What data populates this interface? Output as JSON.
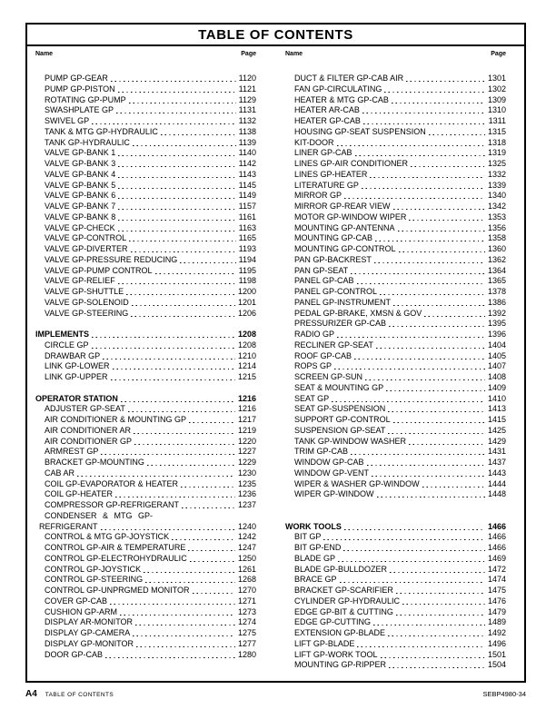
{
  "title": "TABLE OF CONTENTS",
  "column_headers": {
    "name": "Name",
    "page": "Page"
  },
  "footer": {
    "page_label": "A4",
    "section_label": "TABLE OF CONTENTS",
    "doc_number": "SEBP4980-34"
  },
  "colors": {
    "background": "#ffffff",
    "text": "#000000",
    "border": "#000000"
  },
  "columns": [
    {
      "rows": [
        {
          "t": "e",
          "label": "PUMP GP-GEAR",
          "page": "1120"
        },
        {
          "t": "e",
          "label": "PUMP GP-PISTON",
          "page": "1121"
        },
        {
          "t": "e",
          "label": "ROTATING GP-PUMP",
          "page": "1129"
        },
        {
          "t": "e",
          "label": "SWASHPLATE GP",
          "page": "1131"
        },
        {
          "t": "e",
          "label": "SWIVEL GP",
          "page": "1132"
        },
        {
          "t": "e",
          "label": "TANK & MTG GP-HYDRAULIC",
          "page": "1138"
        },
        {
          "t": "e",
          "label": "TANK GP-HYDRAULIC",
          "page": "1139"
        },
        {
          "t": "e",
          "label": "VALVE GP-BANK 1",
          "page": "1140"
        },
        {
          "t": "e",
          "label": "VALVE GP-BANK 3",
          "page": "1142"
        },
        {
          "t": "e",
          "label": "VALVE GP-BANK 4",
          "page": "1143"
        },
        {
          "t": "e",
          "label": "VALVE GP-BANK 5",
          "page": "1145"
        },
        {
          "t": "e",
          "label": "VALVE GP-BANK 6",
          "page": "1149"
        },
        {
          "t": "e",
          "label": "VALVE GP-BANK 7",
          "page": "1157"
        },
        {
          "t": "e",
          "label": "VALVE GP-BANK 8",
          "page": "1161"
        },
        {
          "t": "e",
          "label": "VALVE GP-CHECK",
          "page": "1163"
        },
        {
          "t": "e",
          "label": "VALVE GP-CONTROL",
          "page": "1165"
        },
        {
          "t": "e",
          "label": "VALVE GP-DIVERTER",
          "page": "1193"
        },
        {
          "t": "e",
          "label": "VALVE GP-PRESSURE REDUCING",
          "page": "1194"
        },
        {
          "t": "e",
          "label": "VALVE GP-PUMP CONTROL",
          "page": "1195"
        },
        {
          "t": "e",
          "label": "VALVE GP-RELIEF",
          "page": "1198"
        },
        {
          "t": "e",
          "label": "VALVE GP-SHUTTLE",
          "page": "1200"
        },
        {
          "t": "e",
          "label": "VALVE GP-SOLENOID",
          "page": "1201"
        },
        {
          "t": "e",
          "label": "VALVE GP-STEERING",
          "page": "1206"
        },
        {
          "t": "g"
        },
        {
          "t": "h",
          "label": "IMPLEMENTS",
          "page": "1208"
        },
        {
          "t": "e",
          "label": "CIRCLE GP",
          "page": "1208"
        },
        {
          "t": "e",
          "label": "DRAWBAR GP",
          "page": "1210"
        },
        {
          "t": "e",
          "label": "LINK GP-LOWER",
          "page": "1214"
        },
        {
          "t": "e",
          "label": "LINK GP-UPPER",
          "page": "1215"
        },
        {
          "t": "g"
        },
        {
          "t": "h",
          "label": "OPERATOR STATION",
          "page": "1216"
        },
        {
          "t": "e",
          "label": "ADJUSTER GP-SEAT",
          "page": "1216"
        },
        {
          "t": "e",
          "label": "AIR CONDITIONER & MOUNTING GP",
          "page": "1217"
        },
        {
          "t": "e",
          "label": "AIR CONDITIONER AR",
          "page": "1219"
        },
        {
          "t": "e",
          "label": "AIR CONDITIONER GP",
          "page": "1220"
        },
        {
          "t": "e",
          "label": "ARMREST GP",
          "page": "1227"
        },
        {
          "t": "e",
          "label": "BRACKET GP-MOUNTING",
          "page": "1229"
        },
        {
          "t": "e",
          "label": "CAB AR",
          "page": "1230"
        },
        {
          "t": "e",
          "label": "COIL GP-EVAPORATOR & HEATER",
          "page": "1235"
        },
        {
          "t": "e",
          "label": "COIL GP-HEATER",
          "page": "1236"
        },
        {
          "t": "e",
          "label": "COMPRESSOR GP-REFRIGERANT",
          "page": "1237"
        },
        {
          "t": "w",
          "label": "CONDENSER & MTG GP-"
        },
        {
          "t": "c",
          "label": "REFRIGERANT",
          "page": "1240"
        },
        {
          "t": "e",
          "label": "CONTROL & MTG GP-JOYSTICK",
          "page": "1242"
        },
        {
          "t": "e",
          "label": "CONTROL GP-AIR & TEMPERATURE",
          "page": "1247"
        },
        {
          "t": "e",
          "label": "CONTROL GP-ELECTROHYDRAULIC",
          "page": "1250"
        },
        {
          "t": "e",
          "label": "CONTROL GP-JOYSTICK",
          "page": "1261"
        },
        {
          "t": "e",
          "label": "CONTROL GP-STEERING",
          "page": "1268"
        },
        {
          "t": "e",
          "label": "CONTROL GP-UNPRGMED MONITOR",
          "page": "1270"
        },
        {
          "t": "e",
          "label": "COVER GP-CAB",
          "page": "1271"
        },
        {
          "t": "e",
          "label": "CUSHION GP-ARM",
          "page": "1273"
        },
        {
          "t": "e",
          "label": "DISPLAY AR-MONITOR",
          "page": "1274"
        },
        {
          "t": "e",
          "label": "DISPLAY GP-CAMERA",
          "page": "1275"
        },
        {
          "t": "e",
          "label": "DISPLAY GP-MONITOR",
          "page": "1277"
        },
        {
          "t": "e",
          "label": "DOOR GP-CAB",
          "page": "1280"
        }
      ]
    },
    {
      "rows": [
        {
          "t": "e",
          "label": "DUCT & FILTER GP-CAB AIR",
          "page": "1301"
        },
        {
          "t": "e",
          "label": "FAN GP-CIRCULATING",
          "page": "1302"
        },
        {
          "t": "e",
          "label": "HEATER & MTG GP-CAB",
          "page": "1309"
        },
        {
          "t": "e",
          "label": "HEATER AR-CAB",
          "page": "1310"
        },
        {
          "t": "e",
          "label": "HEATER GP-CAB",
          "page": "1311"
        },
        {
          "t": "e",
          "label": "HOUSING GP-SEAT SUSPENSION",
          "page": "1315"
        },
        {
          "t": "e",
          "label": "KIT-DOOR",
          "page": "1318"
        },
        {
          "t": "e",
          "label": "LINER GP-CAB",
          "page": "1319"
        },
        {
          "t": "e",
          "label": "LINES GP-AIR CONDITIONER",
          "page": "1325"
        },
        {
          "t": "e",
          "label": "LINES GP-HEATER",
          "page": "1332"
        },
        {
          "t": "e",
          "label": "LITERATURE GP",
          "page": "1339"
        },
        {
          "t": "e",
          "label": "MIRROR GP",
          "page": "1340"
        },
        {
          "t": "e",
          "label": "MIRROR GP-REAR VIEW",
          "page": "1342"
        },
        {
          "t": "e",
          "label": "MOTOR GP-WINDOW WIPER",
          "page": "1353"
        },
        {
          "t": "e",
          "label": "MOUNTING GP-ANTENNA",
          "page": "1356"
        },
        {
          "t": "e",
          "label": "MOUNTING GP-CAB",
          "page": "1358"
        },
        {
          "t": "e",
          "label": "MOUNTING GP-CONTROL",
          "page": "1360"
        },
        {
          "t": "e",
          "label": "PAN GP-BACKREST",
          "page": "1362"
        },
        {
          "t": "e",
          "label": "PAN GP-SEAT",
          "page": "1364"
        },
        {
          "t": "e",
          "label": "PANEL GP-CAB",
          "page": "1365"
        },
        {
          "t": "e",
          "label": "PANEL GP-CONTROL",
          "page": "1378"
        },
        {
          "t": "e",
          "label": "PANEL GP-INSTRUMENT",
          "page": "1386"
        },
        {
          "t": "e",
          "label": "PEDAL GP-BRAKE, XMSN & GOV",
          "page": "1392"
        },
        {
          "t": "e",
          "label": "PRESSURIZER GP-CAB",
          "page": "1395"
        },
        {
          "t": "e",
          "label": "RADIO GP",
          "page": "1396"
        },
        {
          "t": "e",
          "label": "RECLINER GP-SEAT",
          "page": "1404"
        },
        {
          "t": "e",
          "label": "ROOF GP-CAB",
          "page": "1405"
        },
        {
          "t": "e",
          "label": "ROPS GP",
          "page": "1407"
        },
        {
          "t": "e",
          "label": "SCREEN GP-SUN",
          "page": "1408"
        },
        {
          "t": "e",
          "label": "SEAT & MOUNTING GP",
          "page": "1409"
        },
        {
          "t": "e",
          "label": "SEAT GP",
          "page": "1410"
        },
        {
          "t": "e",
          "label": "SEAT GP-SUSPENSION",
          "page": "1413"
        },
        {
          "t": "e",
          "label": "SUPPORT GP-CONTROL",
          "page": "1415"
        },
        {
          "t": "e",
          "label": "SUSPENSION GP-SEAT",
          "page": "1425"
        },
        {
          "t": "e",
          "label": "TANK GP-WINDOW WASHER",
          "page": "1429"
        },
        {
          "t": "e",
          "label": "TRIM GP-CAB",
          "page": "1431"
        },
        {
          "t": "e",
          "label": "WINDOW GP-CAB",
          "page": "1437"
        },
        {
          "t": "e",
          "label": "WINDOW GP-VENT",
          "page": "1443"
        },
        {
          "t": "e",
          "label": "WIPER & WASHER GP-WINDOW",
          "page": "1444"
        },
        {
          "t": "e",
          "label": "WIPER GP-WINDOW",
          "page": "1448"
        },
        {
          "t": "g"
        },
        {
          "t": "g"
        },
        {
          "t": "h",
          "label": "WORK TOOLS",
          "page": "1466"
        },
        {
          "t": "e",
          "label": "BIT GP",
          "page": "1466"
        },
        {
          "t": "e",
          "label": "BIT GP-END",
          "page": "1466"
        },
        {
          "t": "e",
          "label": "BLADE GP",
          "page": "1469"
        },
        {
          "t": "e",
          "label": "BLADE GP-BULLDOZER",
          "page": "1472"
        },
        {
          "t": "e",
          "label": "BRACE GP",
          "page": "1474"
        },
        {
          "t": "e",
          "label": "BRACKET GP-SCARIFIER",
          "page": "1475"
        },
        {
          "t": "e",
          "label": "CYLINDER GP-HYDRAULIC",
          "page": "1476"
        },
        {
          "t": "e",
          "label": "EDGE GP-BIT & CUTTING",
          "page": "1479"
        },
        {
          "t": "e",
          "label": "EDGE GP-CUTTING",
          "page": "1489"
        },
        {
          "t": "e",
          "label": "EXTENSION GP-BLADE",
          "page": "1492"
        },
        {
          "t": "e",
          "label": "LIFT GP-BLADE",
          "page": "1496"
        },
        {
          "t": "e",
          "label": "LIFT GP-WORK TOOL",
          "page": "1501"
        },
        {
          "t": "e",
          "label": "MOUNTING GP-RIPPER",
          "page": "1504"
        }
      ]
    }
  ]
}
